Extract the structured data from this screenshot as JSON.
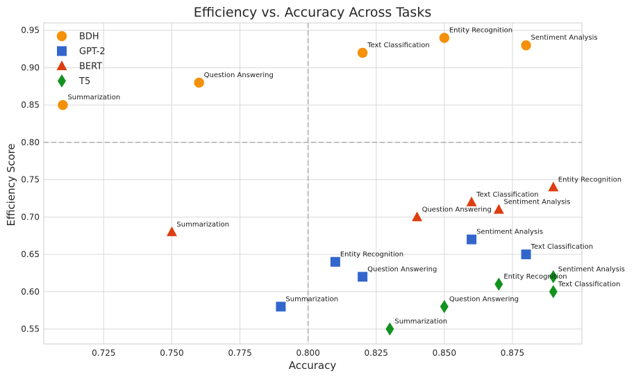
{
  "chart_data": {
    "type": "scatter",
    "title": "Efficiency vs. Accuracy Across Tasks",
    "xlabel": "Accuracy",
    "ylabel": "Efficiency Score",
    "xlim": [
      0.703,
      0.9005
    ],
    "ylim": [
      0.53,
      0.96
    ],
    "xticks": [
      "0.725",
      "0.750",
      "0.775",
      "0.800",
      "0.825",
      "0.850",
      "0.875"
    ],
    "xtick_values": [
      0.725,
      0.75,
      0.775,
      0.8,
      0.825,
      0.85,
      0.875
    ],
    "yticks": [
      "0.55",
      "0.60",
      "0.65",
      "0.70",
      "0.75",
      "0.80",
      "0.85",
      "0.90",
      "0.95"
    ],
    "ytick_values": [
      0.55,
      0.6,
      0.65,
      0.7,
      0.75,
      0.8,
      0.85,
      0.9,
      0.95
    ],
    "grid": true,
    "legend_position": "top-left",
    "reference_lines": {
      "x": 0.8,
      "y": 0.8
    },
    "series": [
      {
        "name": "BDH",
        "marker": "circle",
        "color": "#f5900a",
        "points": [
          {
            "x": 0.71,
            "y": 0.85,
            "label": "Summarization"
          },
          {
            "x": 0.76,
            "y": 0.88,
            "label": "Question Answering"
          },
          {
            "x": 0.82,
            "y": 0.92,
            "label": "Text Classification"
          },
          {
            "x": 0.85,
            "y": 0.94,
            "label": "Entity Recognition"
          },
          {
            "x": 0.88,
            "y": 0.93,
            "label": "Sentiment Analysis"
          }
        ]
      },
      {
        "name": "GPT-2",
        "marker": "square",
        "color": "#3366cc",
        "points": [
          {
            "x": 0.79,
            "y": 0.58,
            "label": "Summarization"
          },
          {
            "x": 0.82,
            "y": 0.62,
            "label": "Question Answering"
          },
          {
            "x": 0.81,
            "y": 0.64,
            "label": "Entity Recognition"
          },
          {
            "x": 0.86,
            "y": 0.67,
            "label": "Sentiment Analysis"
          },
          {
            "x": 0.88,
            "y": 0.65,
            "label": "Text Classification"
          }
        ]
      },
      {
        "name": "BERT",
        "marker": "triangle",
        "color": "#dd3e10",
        "points": [
          {
            "x": 0.75,
            "y": 0.68,
            "label": "Summarization"
          },
          {
            "x": 0.84,
            "y": 0.7,
            "label": "Question Answering"
          },
          {
            "x": 0.86,
            "y": 0.72,
            "label": "Text Classification"
          },
          {
            "x": 0.87,
            "y": 0.71,
            "label": "Sentiment Analysis"
          },
          {
            "x": 0.89,
            "y": 0.74,
            "label": "Entity Recognition"
          }
        ]
      },
      {
        "name": "T5",
        "marker": "diamond",
        "color": "#12921e",
        "points": [
          {
            "x": 0.83,
            "y": 0.55,
            "label": "Summarization"
          },
          {
            "x": 0.85,
            "y": 0.58,
            "label": "Question Answering"
          },
          {
            "x": 0.87,
            "y": 0.61,
            "label": "Entity Recognition"
          },
          {
            "x": 0.89,
            "y": 0.62,
            "label": "Sentiment Analysis"
          },
          {
            "x": 0.89,
            "y": 0.6,
            "label": "Text Classification"
          }
        ]
      }
    ]
  }
}
